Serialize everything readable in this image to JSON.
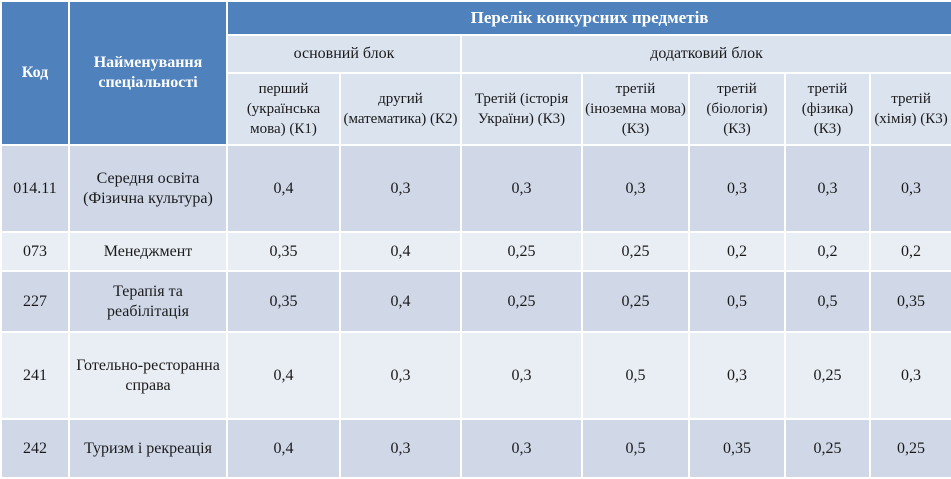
{
  "header": {
    "code": "Код",
    "name": "Найменування спеціальності",
    "subjects_title": "Перелік конкурсних предметів",
    "main_block": "основний блок",
    "extra_block": "додатковий блок",
    "subjects": [
      "перший (українська мова) (К1)",
      "другий (математика) (К2)",
      "Третій (історія України) (К3)",
      "третій (іноземна мова) (К3)",
      "третій (біологія) (К3)",
      "третій (фізика) (К3)",
      "третій (хімія) (К3)"
    ]
  },
  "rows": [
    {
      "code": "014.11",
      "name": "Середня освіта (Фізична культура)",
      "values": [
        "0,4",
        "0,3",
        "0,3",
        "0,3",
        "0,3",
        "0,3",
        "0,3"
      ]
    },
    {
      "code": "073",
      "name": "Менеджмент",
      "values": [
        "0,35",
        "0,4",
        "0,25",
        "0,25",
        "0,2",
        "0,2",
        "0,2"
      ]
    },
    {
      "code": "227",
      "name": "Терапія та реабілітація",
      "values": [
        "0,35",
        "0,4",
        "0,25",
        "0,25",
        "0,5",
        "0,5",
        "0,35"
      ]
    },
    {
      "code": "241",
      "name": "Готельно-ресторанна справа",
      "values": [
        "0,4",
        "0,3",
        "0,3",
        "0,5",
        "0,3",
        "0,25",
        "0,3"
      ]
    },
    {
      "code": "242",
      "name": "Туризм і рекреація",
      "values": [
        "0,4",
        "0,3",
        "0,3",
        "0,5",
        "0,35",
        "0,25",
        "0,25"
      ]
    }
  ]
}
